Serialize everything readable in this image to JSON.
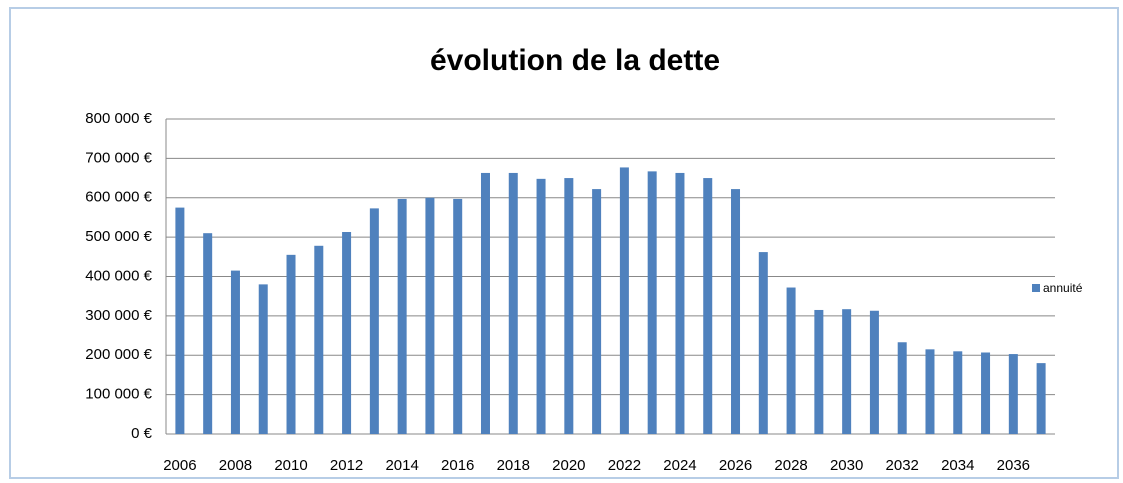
{
  "chart_data": {
    "type": "bar",
    "title": "évolution de la dette",
    "categories": [
      "2006",
      null,
      "2008",
      null,
      "2010",
      null,
      "2012",
      null,
      "2014",
      null,
      "2016",
      null,
      "2018",
      null,
      "2020",
      null,
      "2022",
      null,
      "2024",
      null,
      "2026",
      null,
      "2028",
      null,
      "2030",
      null,
      "2032",
      null,
      "2034",
      null,
      "2036",
      null
    ],
    "series": [
      {
        "name": "annuité",
        "color": "#4f81bd",
        "values": [
          575000,
          510000,
          415000,
          380000,
          455000,
          478000,
          513000,
          573000,
          597000,
          600000,
          597000,
          663000,
          663000,
          648000,
          650000,
          622000,
          677000,
          667000,
          663000,
          650000,
          622000,
          462000,
          372000,
          315000,
          317000,
          313000,
          233000,
          215000,
          210000,
          207000,
          203000,
          180000
        ]
      }
    ],
    "ylim": [
      0,
      800000
    ],
    "yticks": [
      {
        "value": 0,
        "label": "0 €"
      },
      {
        "value": 100000,
        "label": "100 000 €"
      },
      {
        "value": 200000,
        "label": "200 000 €"
      },
      {
        "value": 300000,
        "label": "300 000 €"
      },
      {
        "value": 400000,
        "label": "400 000 €"
      },
      {
        "value": 500000,
        "label": "500 000 €"
      },
      {
        "value": 600000,
        "label": "600 000 €"
      },
      {
        "value": 700000,
        "label": "700 000 €"
      },
      {
        "value": 800000,
        "label": "800 000 €"
      }
    ],
    "grid": true,
    "legend": "right"
  }
}
